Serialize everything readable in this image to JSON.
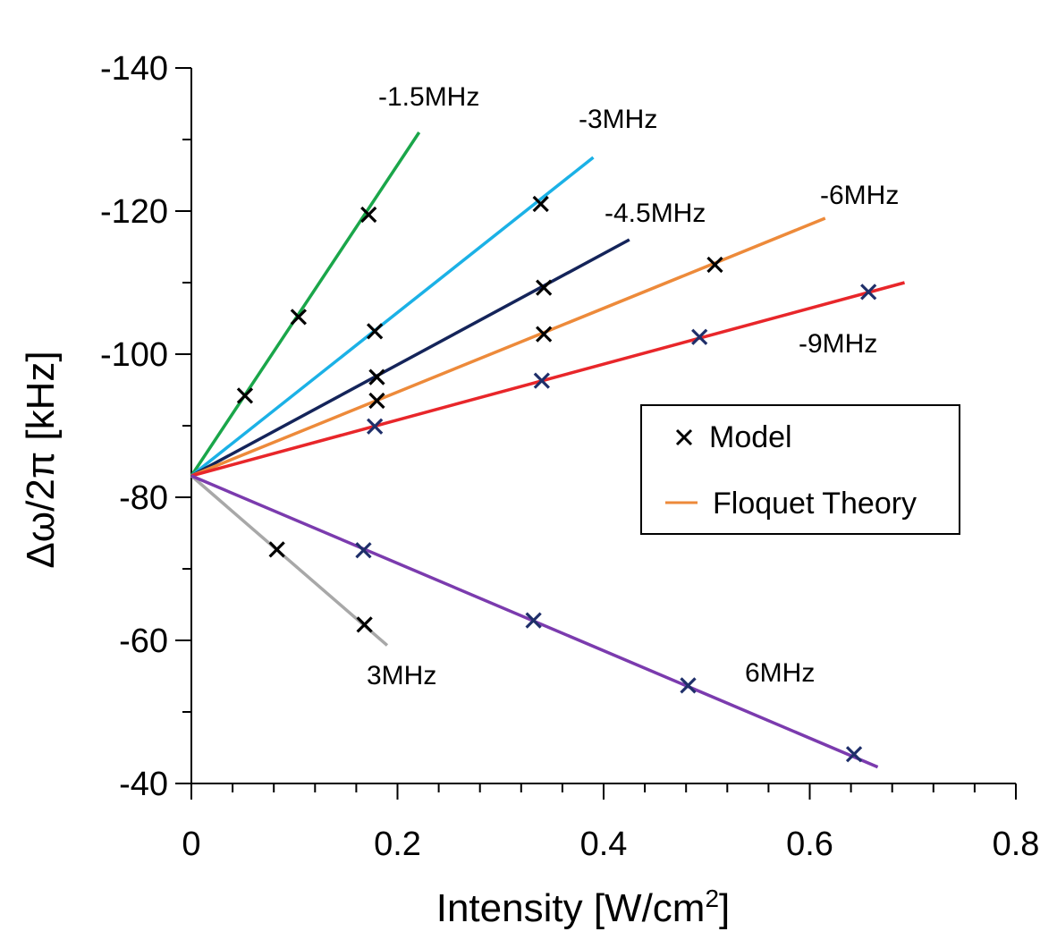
{
  "chart_data": {
    "type": "line",
    "title": "",
    "xlabel": "Intensity [W/cm",
    "xlabel_sup": "2",
    "xlabel_end": "]",
    "ylabel": "Δω/2π [kHz]",
    "xlim": [
      0,
      0.8
    ],
    "ylim": [
      -140,
      -40
    ],
    "y_reversed": true,
    "x_ticks": [
      0,
      0.2,
      0.4,
      0.6,
      0.8
    ],
    "x_tick_labels": [
      "0",
      "0.2",
      "0.4",
      "0.6",
      "0.8"
    ],
    "x_minor_step": 0.04,
    "y_ticks": [
      -140,
      -120,
      -100,
      -80,
      -60,
      -40
    ],
    "y_tick_labels": [
      "-140",
      "-120",
      "-100",
      "-80",
      "-60",
      "-40"
    ],
    "y_minor_step": 10,
    "grid": false,
    "legend": {
      "position": "right",
      "entries": [
        {
          "label": "Model",
          "marker": "x",
          "color": "#000000"
        },
        {
          "label": "Floquet Theory",
          "marker": "line",
          "color": "#ED8A3A"
        }
      ]
    },
    "series": [
      {
        "name": "-1.5MHz",
        "label": "-1.5MHz",
        "color": "#1AA64A",
        "theory": {
          "x": [
            0,
            0.221
          ],
          "y": [
            -83,
            -131
          ]
        },
        "model": {
          "x": [
            0.052,
            0.104,
            0.172
          ],
          "y": [
            -94.2,
            -105.2,
            -119.5
          ]
        },
        "model_color": "#000000"
      },
      {
        "name": "-3MHz",
        "label": "-3MHz",
        "color": "#1BB1E6",
        "theory": {
          "x": [
            0,
            0.39
          ],
          "y": [
            -83,
            -127.5
          ]
        },
        "model": {
          "x": [
            0.178,
            0.339
          ],
          "y": [
            -103.2,
            -121.0
          ]
        },
        "model_color": "#000000"
      },
      {
        "name": "-4.5MHz",
        "label": "-4.5MHz",
        "color": "#14245A",
        "theory": {
          "x": [
            0,
            0.425
          ],
          "y": [
            -83,
            -116
          ]
        },
        "model": {
          "x": [
            0.18,
            0.342
          ],
          "y": [
            -96.8,
            -109.3
          ]
        },
        "model_color": "#000000"
      },
      {
        "name": "-6MHz",
        "label": "-6MHz",
        "color": "#ED8A3A",
        "theory": {
          "x": [
            0,
            0.615
          ],
          "y": [
            -83,
            -119
          ]
        },
        "model": {
          "x": [
            0.18,
            0.342,
            0.508
          ],
          "y": [
            -93.5,
            -102.8,
            -112.5
          ]
        },
        "model_color": "#000000"
      },
      {
        "name": "-9MHz",
        "label": "-9MHz",
        "color": "#E8262A",
        "theory": {
          "x": [
            0,
            0.692
          ],
          "y": [
            -83,
            -110
          ]
        },
        "model": {
          "x": [
            0.178,
            0.34,
            0.493,
            0.657
          ],
          "y": [
            -89.9,
            -96.3,
            -102.4,
            -108.7
          ]
        },
        "model_color": "#1F2F6A"
      },
      {
        "name": "3MHz",
        "label": "3MHz",
        "color": "#A8A8A8",
        "theory": {
          "x": [
            0,
            0.19
          ],
          "y": [
            -83,
            -59.3
          ]
        },
        "model": {
          "x": [
            0.083,
            0.168
          ],
          "y": [
            -72.7,
            -62.2
          ]
        },
        "model_color": "#000000"
      },
      {
        "name": "6MHz",
        "label": "6MHz",
        "color": "#7B3BAE",
        "theory": {
          "x": [
            0,
            0.666
          ],
          "y": [
            -83,
            -42.3
          ]
        },
        "model": {
          "x": [
            0.167,
            0.332,
            0.482,
            0.643
          ],
          "y": [
            -72.6,
            -62.8,
            -53.7,
            -44.1
          ]
        },
        "model_color": "#1F2F6A"
      }
    ]
  }
}
